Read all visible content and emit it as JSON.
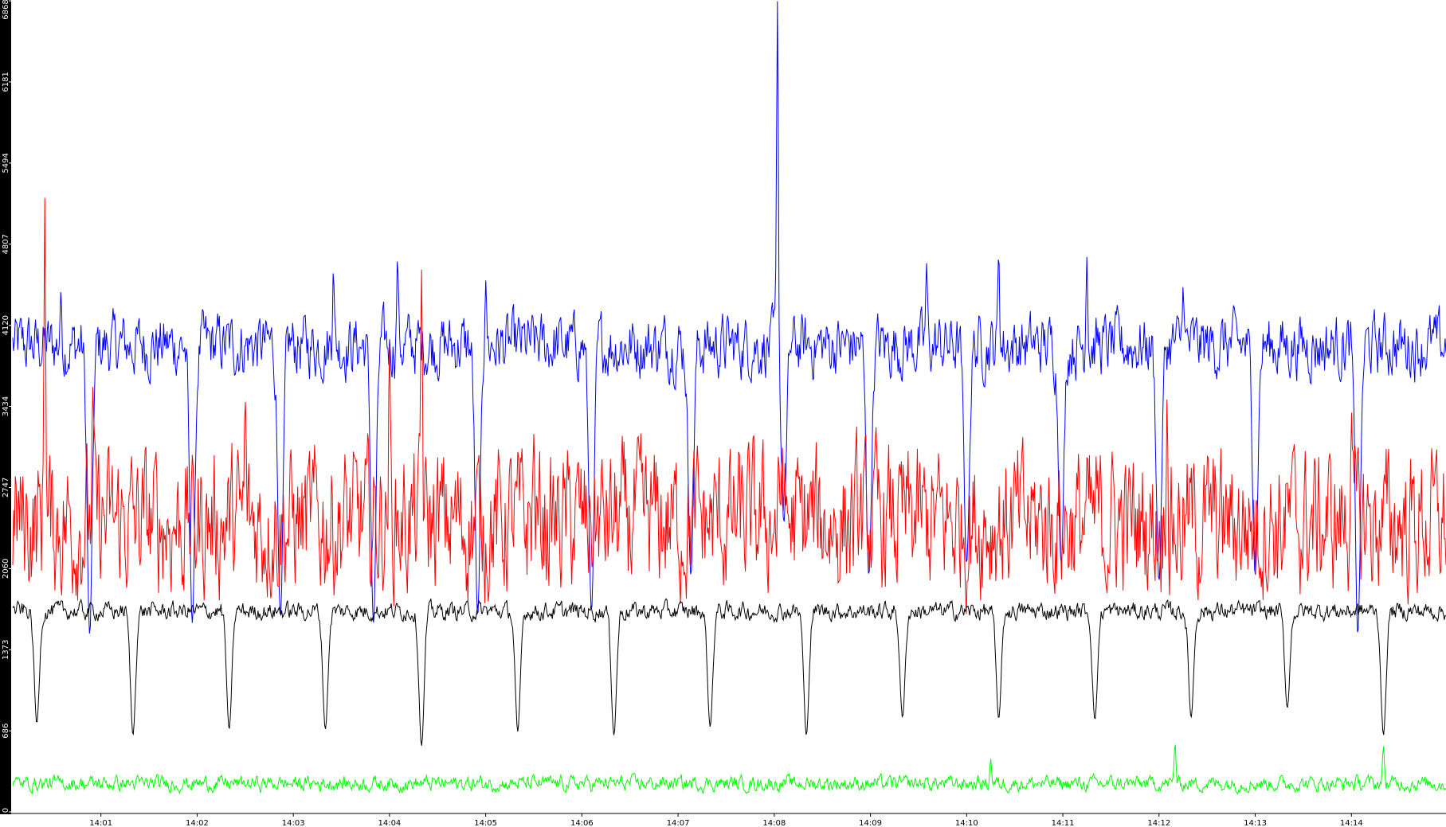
{
  "chart_data": {
    "type": "line",
    "title": "",
    "xlabel": "",
    "ylabel": "",
    "ylim": [
      0,
      6868
    ],
    "xlim": [
      "14:00:05",
      "14:14:59"
    ],
    "grid": false,
    "legend": "none",
    "y_ticks": [
      0,
      686,
      1373,
      2060,
      2747,
      3434,
      4120,
      4807,
      5494,
      6181,
      6868
    ],
    "x_ticks": [
      "14:01",
      "14:02",
      "14:03",
      "14:04",
      "14:05",
      "14:06",
      "14:07",
      "14:08",
      "14:09",
      "14:10",
      "14:11",
      "14:12",
      "14:13",
      "14:14"
    ],
    "colors": {
      "axis_bar": "#000000",
      "background": "#ffffff",
      "blue": "#0000ff",
      "red": "#ff0000",
      "black": "#000000",
      "green": "#00ff00"
    },
    "series": [
      {
        "color": "#0000ff",
        "baseline": 3950,
        "noise": 210,
        "dip_times": [
          "14:00:53",
          "14:01:57",
          "14:02:52",
          "14:03:50",
          "14:04:55",
          "14:06:06",
          "14:07:08",
          "14:08:06",
          "14:08:59",
          "14:10:00",
          "14:10:59",
          "14:12:00",
          "14:13:00",
          "14:14:04"
        ],
        "dip_values": [
          1500,
          1600,
          1650,
          1600,
          1650,
          1700,
          2000,
          2450,
          2000,
          2100,
          2100,
          1950,
          2000,
          1500
        ],
        "peaks": [
          [
            "14:00:35",
            4400
          ],
          [
            "14:03:25",
            4600
          ],
          [
            "14:04:05",
            4700
          ],
          [
            "14:05:00",
            4500
          ],
          [
            "14:08:02",
            6868
          ],
          [
            "14:09:35",
            4650
          ],
          [
            "14:10:20",
            4750
          ],
          [
            "14:11:15",
            4700
          ],
          [
            "14:12:15",
            4450
          ]
        ]
      },
      {
        "color": "#ff0000",
        "baseline": 2450,
        "noise": 480,
        "peaks": [
          [
            "14:00:25",
            5200
          ],
          [
            "14:00:55",
            3600
          ],
          [
            "14:02:30",
            3500
          ],
          [
            "14:04:00",
            3950
          ],
          [
            "14:04:20",
            4600
          ],
          [
            "14:05:30",
            3200
          ],
          [
            "14:08:05",
            3100
          ],
          [
            "14:12:05",
            3500
          ],
          [
            "14:14:00",
            3400
          ]
        ]
      },
      {
        "color": "#000000",
        "baseline": 1700,
        "noise": 60,
        "dip_times": [
          "14:00:20",
          "14:01:20",
          "14:02:20",
          "14:03:20",
          "14:04:20",
          "14:05:20",
          "14:06:20",
          "14:07:20",
          "14:08:20",
          "14:09:20",
          "14:10:20",
          "14:11:20",
          "14:12:20",
          "14:13:20",
          "14:14:20"
        ],
        "dip_values": [
          750,
          650,
          700,
          700,
          560,
          680,
          650,
          720,
          650,
          800,
          790,
          780,
          800,
          880,
          650
        ]
      },
      {
        "color": "#00ff00",
        "baseline": 240,
        "noise": 50,
        "peaks": [
          [
            "14:12:10",
            590
          ],
          [
            "14:14:20",
            560
          ],
          [
            "14:10:15",
            450
          ]
        ]
      }
    ]
  }
}
